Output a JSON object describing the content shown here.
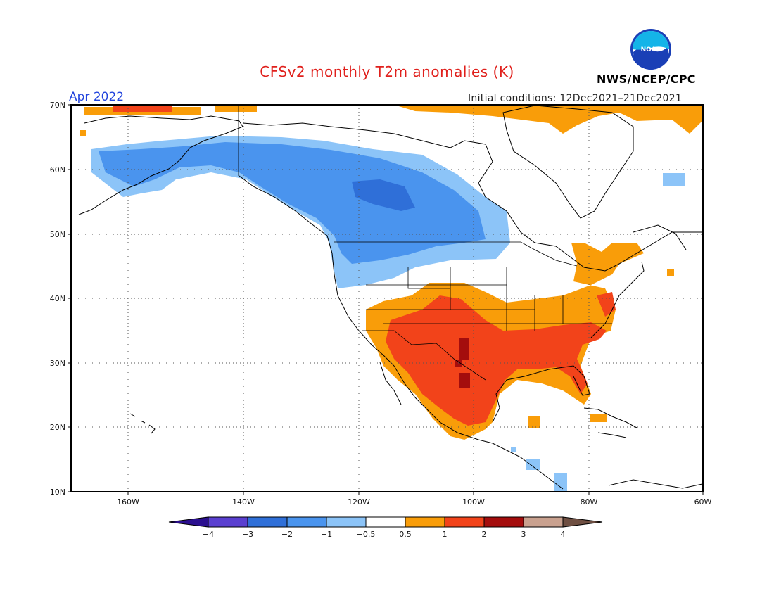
{
  "header": {
    "title": "CFSv2 monthly T2m anomalies (K)",
    "month": "Apr 2022",
    "initial_conditions": "Initial conditions: 12Dec2021–21Dec2021",
    "agency": "NWS/NCEP/CPC",
    "logo_text": "NOAA"
  },
  "map": {
    "lat_labels": [
      "70N",
      "60N",
      "50N",
      "40N",
      "30N",
      "20N",
      "10N"
    ],
    "lon_labels": [
      "160W",
      "140W",
      "120W",
      "100W",
      "80W",
      "60W"
    ],
    "lat_range": [
      10,
      70
    ],
    "lon_range": [
      -170,
      -60
    ]
  },
  "colorbar": {
    "labels": [
      "−4",
      "−3",
      "−2",
      "−1",
      "−0.5",
      "0.5",
      "1",
      "2",
      "3",
      "4"
    ],
    "colors": [
      "#2b0f8f",
      "#5a3fd0",
      "#2f6fd8",
      "#4a94ee",
      "#8cc4f8",
      "#ffffff",
      "#f99d09",
      "#f2431a",
      "#a40d0d",
      "#c9a18f",
      "#6f4f42"
    ]
  },
  "colors": {
    "cool_1": "#8cc4f8",
    "cool_2": "#4a94ee",
    "cool_3": "#2f6fd8",
    "warm_1": "#f99d09",
    "warm_2": "#f2431a",
    "warm_3": "#a40d0d"
  }
}
